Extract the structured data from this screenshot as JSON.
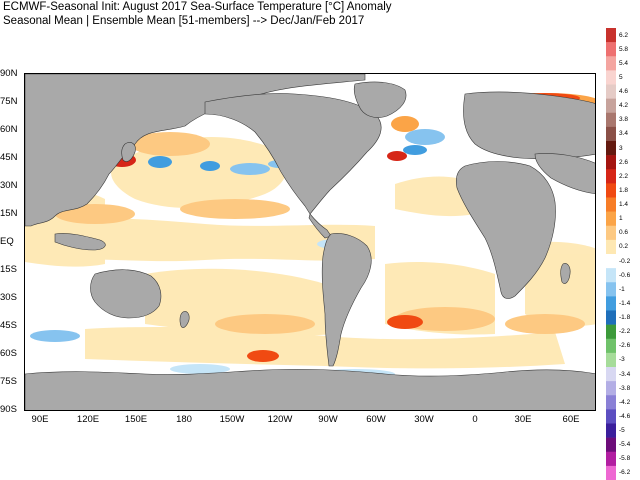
{
  "header": {
    "line1": "ECMWF-Seasonal Init: August 2017 Sea-Surface Temperature [°C] Anomaly",
    "line2": "Seasonal Mean | Ensemble Mean [51-members] --> Dec/Jan/Feb 2017"
  },
  "map": {
    "lat_labels": [
      "90N",
      "75N",
      "60N",
      "45N",
      "30N",
      "15N",
      "EQ",
      "15S",
      "30S",
      "45S",
      "60S",
      "75S",
      "90S"
    ],
    "lon_labels": [
      "90E",
      "120E",
      "150E",
      "180",
      "150W",
      "120W",
      "90W",
      "60W",
      "30W",
      "0",
      "30E",
      "60E"
    ],
    "land_color": "#a9a9a9",
    "ocean_color": "#ffffff"
  },
  "colorbar": {
    "labels": [
      "6.2",
      "5.8",
      "5.4",
      "5",
      "4.6",
      "4.2",
      "3.8",
      "3.4",
      "3",
      "2.6",
      "2.2",
      "1.8",
      "1.4",
      "1",
      "0.6",
      "0.2",
      "-0.2",
      "-0.6",
      "-1",
      "-1.4",
      "-1.8",
      "-2.2",
      "-2.6",
      "-3",
      "-3.4",
      "-3.8",
      "-4.2",
      "-4.6",
      "-5",
      "-5.4",
      "-5.8",
      "-6.2"
    ],
    "colors": [
      "#c8322d",
      "#ee7070",
      "#f4a5a0",
      "#f9d4d0",
      "#e5cbc6",
      "#c7a39c",
      "#a9776e",
      "#8a5047",
      "#641a10",
      "#a41510",
      "#d62617",
      "#f04a12",
      "#f77d27",
      "#fba447",
      "#fdc982",
      "#fee8b3",
      "#ffffff",
      "#c5e5f8",
      "#86c3ef",
      "#419ddf",
      "#1f6fba",
      "#3c9a3a",
      "#6fc26a",
      "#a6dc9a",
      "#d8d8f2",
      "#b3aee5",
      "#8a80d6",
      "#5c4fc1",
      "#3b1f9c",
      "#6d0d7a",
      "#b21ea1",
      "#ee68d2"
    ]
  }
}
